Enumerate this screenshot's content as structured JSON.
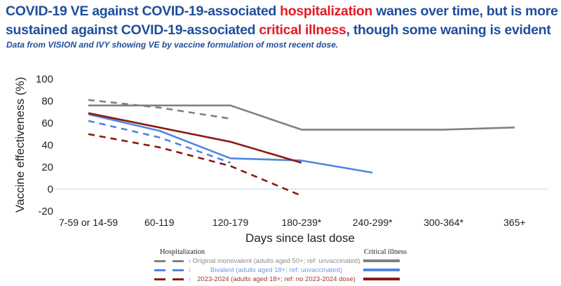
{
  "title": {
    "part1": "COVID-19 VE against COVID-19-associated ",
    "highlight1": "hospitalization",
    "part2": " wanes over time, but is more sustained against COVID-19-associated ",
    "highlight2": "critical illness",
    "part3": ", though some waning is evident"
  },
  "subtitle": "Data from VISION and IVY showing VE by vaccine formulation of most recent dose.",
  "colors": {
    "title": "#1f4e9c",
    "highlight": "#e31b23",
    "original": "#808080",
    "bivalent": "#4f86e0",
    "updated": "#8b1a12",
    "zero_line": "#d6e4f5"
  },
  "chart_data": {
    "type": "line",
    "title": "COVID-19 VE by vaccine formulation and days since last dose",
    "xlabel": "Days since last dose",
    "ylabel": "Vaccine effectiveness (%)",
    "ylim": [
      -20,
      100
    ],
    "yticks": [
      100,
      80,
      60,
      40,
      20,
      0,
      -20
    ],
    "categories": [
      "7-59 or 14-59",
      "60-119",
      "120-179",
      "180-239*",
      "240-299*",
      "300-364*",
      "365+"
    ],
    "grid": false,
    "legend_position": "bottom",
    "series": [
      {
        "name": "Original monovalent (adults aged 50+; ref: unvaccinated) - Hospitalization",
        "outcome": "Hospitalization",
        "formulation": "original",
        "style": "dashed",
        "values": [
          81,
          74,
          64,
          null,
          null,
          null,
          null
        ]
      },
      {
        "name": "Bivalent (adults aged 18+; ref: unvaccinated) - Hospitalization",
        "outcome": "Hospitalization",
        "formulation": "bivalent",
        "style": "dashed",
        "values": [
          62,
          47,
          24,
          null,
          null,
          null,
          null
        ]
      },
      {
        "name": "2023-2024 (adults aged 18+; ref: no 2023-2024 dose) - Hospitalization",
        "outcome": "Hospitalization",
        "formulation": "updated",
        "style": "dashed",
        "values": [
          50,
          38,
          21,
          -6,
          null,
          null,
          null
        ]
      },
      {
        "name": "Original monovalent (adults aged 50+; ref: unvaccinated) - Critical illness",
        "outcome": "Critical illness",
        "formulation": "original",
        "style": "solid",
        "values": [
          76,
          76,
          76,
          54,
          54,
          54,
          56
        ]
      },
      {
        "name": "Bivalent (adults aged 18+; ref: unvaccinated) - Critical illness",
        "outcome": "Critical illness",
        "formulation": "bivalent",
        "style": "solid",
        "values": [
          68,
          53,
          28,
          26,
          15,
          null,
          null
        ]
      },
      {
        "name": "2023-2024 (adults aged 18+; ref: no 2023-2024 dose) - Critical illness",
        "outcome": "Critical illness",
        "formulation": "updated",
        "style": "solid",
        "values": [
          69,
          56,
          43,
          24,
          null,
          null,
          null
        ]
      }
    ]
  },
  "legend": {
    "hospitalization_header": "Hospitalization",
    "critical_header": "Critical illness",
    "items": [
      {
        "label": "Original monovalent  (adults aged 50+; ref: unvaccinated)",
        "color": "#808080",
        "label_color": "#8c8c8c"
      },
      {
        "label": "Bivalent (adults aged 18+; ref: unvaccinated)",
        "color": "#4f86e0",
        "label_color": "#6b9be6"
      },
      {
        "label": "2023-2024 (adults aged 18+; ref: no 2023-2024 dose)",
        "color": "#8b1a12",
        "label_color": "#9a3a30"
      }
    ]
  }
}
